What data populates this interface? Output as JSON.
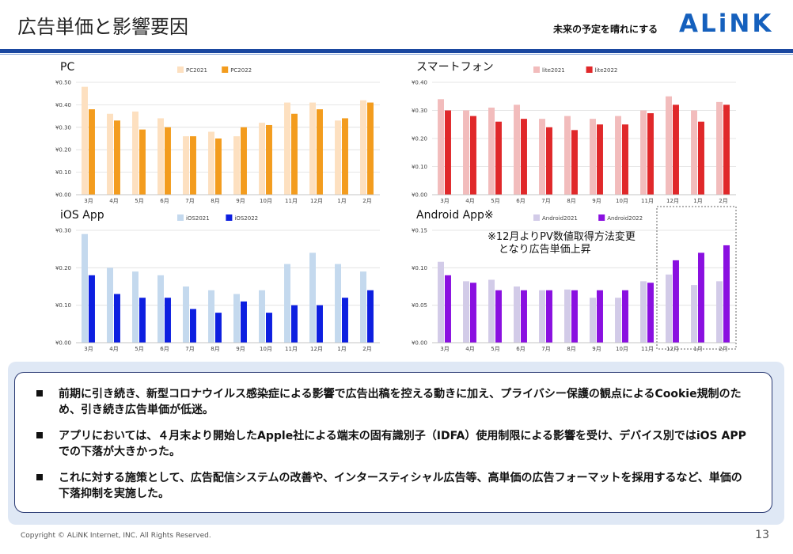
{
  "header": {
    "title": "広告単価と影響要因",
    "tagline": "未来の予定を晴れにする",
    "logo": "ALiNK"
  },
  "chart_data": [
    {
      "id": "pc",
      "type": "bar",
      "title": "PC",
      "categories": [
        "3月",
        "4月",
        "5月",
        "6月",
        "7月",
        "8月",
        "9月",
        "10月",
        "11月",
        "12月",
        "1月",
        "2月"
      ],
      "series": [
        {
          "name": "PC2021",
          "color": "#fde0c0",
          "values": [
            0.48,
            0.36,
            0.37,
            0.34,
            0.26,
            0.28,
            0.26,
            0.32,
            0.41,
            0.41,
            0.33,
            0.42
          ]
        },
        {
          "name": "PC2022",
          "color": "#f39c1e",
          "values": [
            0.38,
            0.33,
            0.29,
            0.3,
            0.26,
            0.25,
            0.3,
            0.31,
            0.36,
            0.38,
            0.34,
            0.41
          ]
        }
      ],
      "ylim": [
        0,
        0.5
      ],
      "yticks": [
        "¥0.00",
        "¥0.10",
        "¥0.20",
        "¥0.30",
        "¥0.40",
        "¥0.50"
      ],
      "grid": true,
      "legend": "top-center"
    },
    {
      "id": "smartphone",
      "type": "bar",
      "title": "スマートフォン",
      "categories": [
        "3月",
        "4月",
        "5月",
        "6月",
        "7月",
        "8月",
        "9月",
        "10月",
        "11月",
        "12月",
        "1月",
        "2月"
      ],
      "series": [
        {
          "name": "lite2021",
          "color": "#f2bcbc",
          "values": [
            0.34,
            0.3,
            0.31,
            0.32,
            0.27,
            0.28,
            0.27,
            0.28,
            0.3,
            0.35,
            0.3,
            0.33
          ]
        },
        {
          "name": "lite2022",
          "color": "#e0282a",
          "values": [
            0.3,
            0.28,
            0.26,
            0.27,
            0.24,
            0.23,
            0.25,
            0.25,
            0.29,
            0.32,
            0.26,
            0.32
          ]
        }
      ],
      "ylim": [
        0,
        0.4
      ],
      "yticks": [
        "¥0.00",
        "¥0.10",
        "¥0.20",
        "¥0.30",
        "¥0.40"
      ],
      "grid": true,
      "legend": "top-center"
    },
    {
      "id": "ios",
      "type": "bar",
      "title": "iOS App",
      "categories": [
        "3月",
        "4月",
        "5月",
        "6月",
        "7月",
        "8月",
        "9月",
        "10月",
        "11月",
        "12月",
        "1月",
        "2月"
      ],
      "series": [
        {
          "name": "iOS2021",
          "color": "#c4d9ee",
          "values": [
            0.29,
            0.2,
            0.19,
            0.18,
            0.15,
            0.14,
            0.13,
            0.14,
            0.21,
            0.24,
            0.21,
            0.19
          ]
        },
        {
          "name": "iOS2022",
          "color": "#0d1fe0",
          "values": [
            0.18,
            0.13,
            0.12,
            0.12,
            0.09,
            0.08,
            0.11,
            0.08,
            0.1,
            0.1,
            0.12,
            0.14
          ]
        }
      ],
      "ylim": [
        0,
        0.3
      ],
      "yticks": [
        "¥0.00",
        "¥0.10",
        "¥0.20",
        "¥0.30"
      ],
      "grid": true,
      "legend": "top-center"
    },
    {
      "id": "android",
      "type": "bar",
      "title": "Android App※",
      "categories": [
        "3月",
        "4月",
        "5月",
        "6月",
        "7月",
        "8月",
        "9月",
        "10月",
        "11月",
        "12月",
        "1月",
        "2月"
      ],
      "series": [
        {
          "name": "Android2021",
          "color": "#d2cbe8",
          "values": [
            0.108,
            0.082,
            0.084,
            0.075,
            0.07,
            0.071,
            0.06,
            0.06,
            0.082,
            0.091,
            0.077,
            0.082
          ]
        },
        {
          "name": "Android2022",
          "color": "#8a10e0",
          "values": [
            0.09,
            0.08,
            0.07,
            0.07,
            0.07,
            0.07,
            0.07,
            0.07,
            0.08,
            0.11,
            0.12,
            0.13
          ]
        }
      ],
      "ylim": [
        0,
        0.15
      ],
      "yticks": [
        "¥0.00",
        "¥0.05",
        "¥0.10",
        "¥0.15"
      ],
      "grid": true,
      "legend": "top-center",
      "highlight_categories": [
        "12月",
        "1月",
        "2月"
      ]
    }
  ],
  "annotation": {
    "line1": "※12月よりPV数値取得方法変更",
    "line2": "となり広告単価上昇"
  },
  "notes": [
    "前期に引き続き、新型コロナウイルス感染症による影響で広告出稿を控える動きに加え、プライバシー保護の観点によるCookie規制のため、引き続き広告単価が低迷。",
    "アプリにおいては、４月末より開始したApple社による端末の固有識別子（IDFA）使用制限による影響を受け、デバイス別ではiOS APPでの下落が大きかった。",
    "これに対する施策として、広告配信システムの改善や、インタースティシャル広告等、高単価の広告フォーマットを採用するなど、単価の下落抑制を実施した。"
  ],
  "footer": {
    "copyright": "Copyright © ALiNK Internet, INC. All Rights Reserved.",
    "page": "13"
  }
}
